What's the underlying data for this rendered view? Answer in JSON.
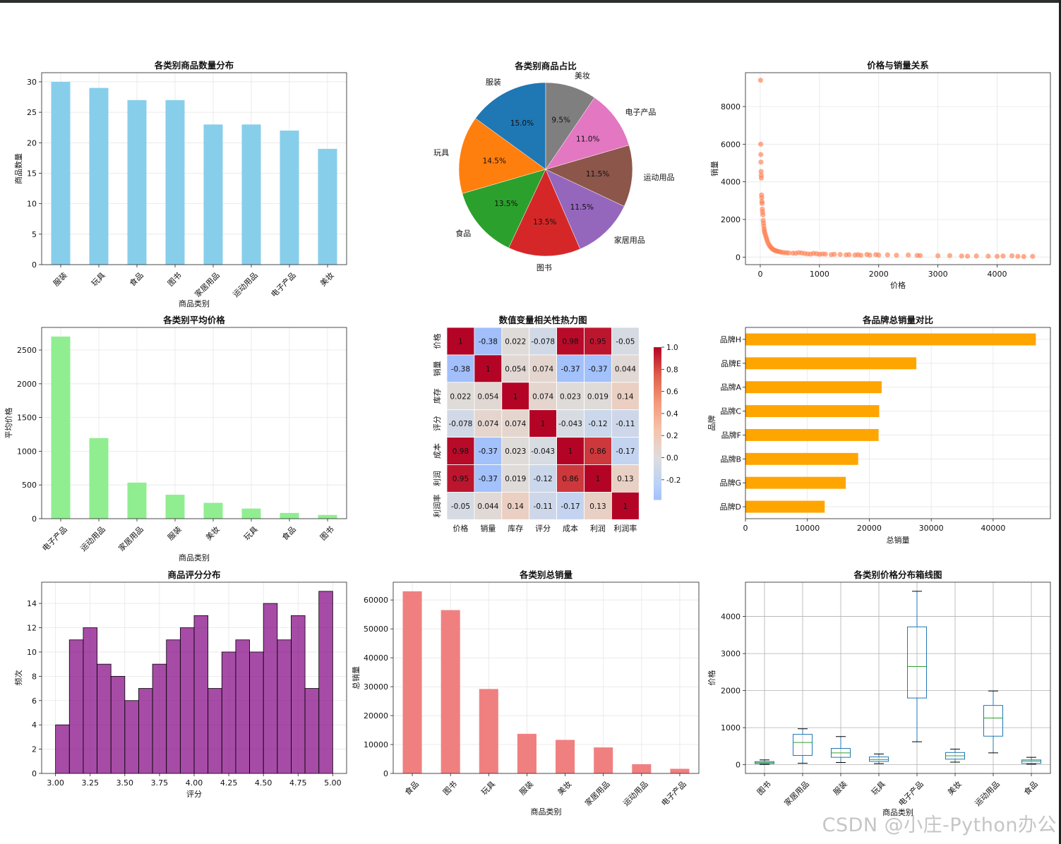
{
  "watermark": "CSDN @小庄-Python办公",
  "chart_data": [
    {
      "id": "category_count",
      "type": "bar",
      "title": "各类别商品数量分布",
      "xlabel": "商品类别",
      "ylabel": "商品数量",
      "categories": [
        "服装",
        "玩具",
        "食品",
        "图书",
        "家居用品",
        "运动用品",
        "电子产品",
        "美妆"
      ],
      "values": [
        30,
        29,
        27,
        27,
        23,
        23,
        22,
        19
      ],
      "ylim": [
        0,
        31.5
      ],
      "yticks": [
        0,
        5,
        10,
        15,
        20,
        25,
        30
      ],
      "color": "#87CEEB",
      "grid": true
    },
    {
      "id": "category_share",
      "type": "pie",
      "title": "各类别商品占比",
      "labels": [
        "服装",
        "玩具",
        "食品",
        "图书",
        "家居用品",
        "运动用品",
        "电子产品",
        "美妆"
      ],
      "values": [
        15.0,
        14.5,
        13.5,
        13.5,
        11.5,
        11.5,
        11.0,
        9.5
      ],
      "pct_labels": [
        "15.0%",
        "14.5%",
        "13.5%",
        "13.5%",
        "11.5%",
        "11.5%",
        "11.0%",
        "9.5%"
      ],
      "colors": [
        "#1f77b4",
        "#ff7f0e",
        "#2ca02c",
        "#d62728",
        "#9467bd",
        "#8c564b",
        "#e377c2",
        "#7f7f7f"
      ],
      "startangle": 90
    },
    {
      "id": "price_vs_sales",
      "type": "scatter",
      "title": "价格与销量关系",
      "xlabel": "价格",
      "ylabel": "销量",
      "xlim": [
        -250,
        4900
      ],
      "ylim": [
        -400,
        9800
      ],
      "xticks": [
        0,
        1000,
        2000,
        3000,
        4000
      ],
      "yticks": [
        0,
        2000,
        4000,
        6000,
        8000
      ],
      "color": "#FF7F50",
      "grid": true,
      "points": [
        [
          5,
          9400
        ],
        [
          8,
          6000
        ],
        [
          10,
          5450
        ],
        [
          12,
          5050
        ],
        [
          14,
          4550
        ],
        [
          16,
          4350
        ],
        [
          18,
          4200
        ],
        [
          22,
          3300
        ],
        [
          25,
          3150
        ],
        [
          28,
          2950
        ],
        [
          32,
          2850
        ],
        [
          35,
          2550
        ],
        [
          40,
          2400
        ],
        [
          45,
          2250
        ],
        [
          50,
          1950
        ],
        [
          55,
          1800
        ],
        [
          60,
          1650
        ],
        [
          65,
          1500
        ],
        [
          70,
          1400
        ],
        [
          75,
          1300
        ],
        [
          85,
          1200
        ],
        [
          95,
          1100
        ],
        [
          105,
          1000
        ],
        [
          115,
          900
        ],
        [
          125,
          800
        ],
        [
          140,
          700
        ],
        [
          155,
          620
        ],
        [
          170,
          560
        ],
        [
          185,
          500
        ],
        [
          200,
          450
        ],
        [
          220,
          400
        ],
        [
          240,
          370
        ],
        [
          260,
          340
        ],
        [
          280,
          320
        ],
        [
          300,
          300
        ],
        [
          330,
          280
        ],
        [
          360,
          260
        ],
        [
          400,
          240
        ],
        [
          440,
          230
        ],
        [
          480,
          220
        ],
        [
          550,
          210
        ],
        [
          600,
          200
        ],
        [
          650,
          240
        ],
        [
          700,
          220
        ],
        [
          750,
          190
        ],
        [
          800,
          170
        ],
        [
          850,
          160
        ],
        [
          900,
          200
        ],
        [
          950,
          180
        ],
        [
          1000,
          150
        ],
        [
          1050,
          170
        ],
        [
          1100,
          160
        ],
        [
          1200,
          130
        ],
        [
          1250,
          150
        ],
        [
          1350,
          140
        ],
        [
          1450,
          120
        ],
        [
          1500,
          130
        ],
        [
          1600,
          110
        ],
        [
          1650,
          130
        ],
        [
          1700,
          100
        ],
        [
          1800,
          140
        ],
        [
          1850,
          110
        ],
        [
          1950,
          130
        ],
        [
          2000,
          110
        ],
        [
          2150,
          120
        ],
        [
          2300,
          100
        ],
        [
          2500,
          110
        ],
        [
          2650,
          90
        ],
        [
          2700,
          80
        ],
        [
          3000,
          70
        ],
        [
          3200,
          80
        ],
        [
          3400,
          60
        ],
        [
          3500,
          50
        ],
        [
          3650,
          60
        ],
        [
          3850,
          50
        ],
        [
          4000,
          40
        ],
        [
          4100,
          60
        ],
        [
          4250,
          70
        ],
        [
          4350,
          40
        ],
        [
          4450,
          30
        ],
        [
          4600,
          40
        ]
      ]
    },
    {
      "id": "category_avg_price",
      "type": "bar",
      "title": "各类别平均价格",
      "xlabel": "商品类别",
      "ylabel": "平均价格",
      "categories": [
        "电子产品",
        "运动用品",
        "家居用品",
        "服装",
        "美妆",
        "玩具",
        "食品",
        "图书"
      ],
      "values": [
        2700,
        1195,
        535,
        355,
        235,
        150,
        85,
        55
      ],
      "ylim": [
        0,
        2835
      ],
      "yticks": [
        0,
        500,
        1000,
        1500,
        2000,
        2500
      ],
      "color": "#90EE90",
      "grid": true
    },
    {
      "id": "correlation_heatmap",
      "type": "heatmap",
      "title": "数值变量相关性热力图",
      "labels": [
        "价格",
        "销量",
        "库存",
        "评分",
        "成本",
        "利润",
        "利润率"
      ],
      "matrix": [
        [
          1,
          -0.38,
          0.022,
          -0.078,
          0.98,
          0.95,
          -0.05
        ],
        [
          -0.38,
          1,
          0.054,
          0.074,
          -0.37,
          -0.37,
          0.044
        ],
        [
          0.022,
          0.054,
          1,
          0.074,
          0.023,
          0.019,
          0.14
        ],
        [
          -0.078,
          0.074,
          0.074,
          1,
          -0.043,
          -0.12,
          -0.11
        ],
        [
          0.98,
          -0.37,
          0.023,
          -0.043,
          1,
          0.86,
          -0.17
        ],
        [
          0.95,
          -0.37,
          0.019,
          -0.12,
          0.86,
          1,
          0.13
        ],
        [
          -0.05,
          0.044,
          0.14,
          -0.11,
          -0.17,
          0.13,
          1
        ]
      ],
      "cell_text": [
        [
          "1",
          "-0.38",
          "0.022",
          "-0.078",
          "0.98",
          "0.95",
          "-0.05"
        ],
        [
          "-0.38",
          "1",
          "0.054",
          "0.074",
          "-0.37",
          "-0.37",
          "0.044"
        ],
        [
          "0.022",
          "0.054",
          "1",
          "0.074",
          "0.023",
          "0.019",
          "0.14"
        ],
        [
          "-0.078",
          "0.074",
          "0.074",
          "1",
          "-0.043",
          "-0.12",
          "-0.11"
        ],
        [
          "0.98",
          "-0.37",
          "0.023",
          "-0.043",
          "1",
          "0.86",
          "-0.17"
        ],
        [
          "0.95",
          "-0.37",
          "0.019",
          "-0.12",
          "0.86",
          "1",
          "0.13"
        ],
        [
          "-0.05",
          "0.044",
          "0.14",
          "-0.11",
          "-0.17",
          "0.13",
          "1"
        ]
      ],
      "colormap": "coolwarm",
      "colorbar_range": [
        -0.38,
        1.0
      ],
      "colorbar_ticks": [
        1.0,
        0.8,
        0.6,
        0.4,
        0.2,
        0.0,
        -0.2
      ],
      "colorbar_tick_labels": [
        "1.0",
        "0.8",
        "0.6",
        "0.4",
        "0.2",
        "0.0",
        "-0.2"
      ]
    },
    {
      "id": "brand_total_sales",
      "type": "bar",
      "orientation": "horizontal",
      "title": "各品牌总销量对比",
      "xlabel": "总销量",
      "ylabel": "品牌",
      "categories": [
        "品牌H",
        "品牌E",
        "品牌A",
        "品牌C",
        "品牌F",
        "品牌B",
        "品牌G",
        "品牌D"
      ],
      "values": [
        46900,
        27600,
        22000,
        21600,
        21500,
        18200,
        16200,
        12800
      ],
      "xlim": [
        0,
        49250
      ],
      "xticks": [
        0,
        10000,
        20000,
        30000,
        40000
      ],
      "color": "#FFA500",
      "grid": true
    },
    {
      "id": "rating_hist",
      "type": "bar",
      "title": "商品评分分布",
      "xlabel": "评分",
      "ylabel": "频次",
      "bin_edges": [
        3.0,
        3.1,
        3.2,
        3.3,
        3.4,
        3.5,
        3.6,
        3.7,
        3.8,
        3.9,
        4.0,
        4.1,
        4.2,
        4.3,
        4.4,
        4.5,
        4.6,
        4.7,
        4.8,
        4.9,
        5.0
      ],
      "values": [
        4,
        11,
        12,
        9,
        8,
        6,
        7,
        9,
        11,
        12,
        13,
        7,
        10,
        11,
        10,
        14,
        11,
        13,
        7,
        15
      ],
      "xlim": [
        2.9,
        5.1
      ],
      "ylim": [
        0,
        15.75
      ],
      "xticks": [
        3.0,
        3.25,
        3.5,
        3.75,
        4.0,
        4.25,
        4.5,
        4.75,
        5.0
      ],
      "xtick_labels": [
        "3.00",
        "3.25",
        "3.50",
        "3.75",
        "4.00",
        "4.25",
        "4.50",
        "4.75",
        "5.00"
      ],
      "yticks": [
        0,
        2,
        4,
        6,
        8,
        10,
        12,
        14
      ],
      "color": "#800080",
      "grid": true
    },
    {
      "id": "category_total_sales",
      "type": "bar",
      "title": "各类别总销量",
      "xlabel": "商品类别",
      "ylabel": "总销量",
      "categories": [
        "食品",
        "图书",
        "玩具",
        "服装",
        "美妆",
        "家居用品",
        "运动用品",
        "电子产品"
      ],
      "values": [
        63000,
        56500,
        29200,
        13700,
        11600,
        9000,
        3200,
        1600
      ],
      "ylim": [
        0,
        66150
      ],
      "yticks": [
        0,
        10000,
        20000,
        30000,
        40000,
        50000,
        60000
      ],
      "color": "#F08080",
      "grid": true
    },
    {
      "id": "category_price_box",
      "type": "box",
      "title": "各类别价格分布箱线图",
      "xlabel": "商品类别",
      "ylabel": "价格",
      "categories": [
        "图书",
        "家居用品",
        "服装",
        "玩具",
        "电子产品",
        "美妆",
        "运动用品",
        "食品"
      ],
      "boxes": [
        {
          "min": 10,
          "q1": 30,
          "median": 55,
          "q3": 85,
          "max": 130
        },
        {
          "min": 40,
          "q1": 250,
          "median": 600,
          "q3": 820,
          "max": 970
        },
        {
          "min": 60,
          "q1": 200,
          "median": 320,
          "q3": 440,
          "max": 760
        },
        {
          "min": 30,
          "q1": 90,
          "median": 140,
          "q3": 210,
          "max": 290
        },
        {
          "min": 620,
          "q1": 1800,
          "median": 2650,
          "q3": 3720,
          "max": 4680
        },
        {
          "min": 70,
          "q1": 150,
          "median": 240,
          "q3": 330,
          "max": 420
        },
        {
          "min": 320,
          "q1": 770,
          "median": 1260,
          "q3": 1600,
          "max": 1990
        },
        {
          "min": 15,
          "q1": 35,
          "median": 95,
          "q3": 130,
          "max": 200
        }
      ],
      "ylim": [
        -235,
        4925
      ],
      "yticks": [
        0,
        1000,
        2000,
        3000,
        4000
      ],
      "box_color": "#1f77b4",
      "median_color": "#2ca02c",
      "grid": true
    }
  ]
}
